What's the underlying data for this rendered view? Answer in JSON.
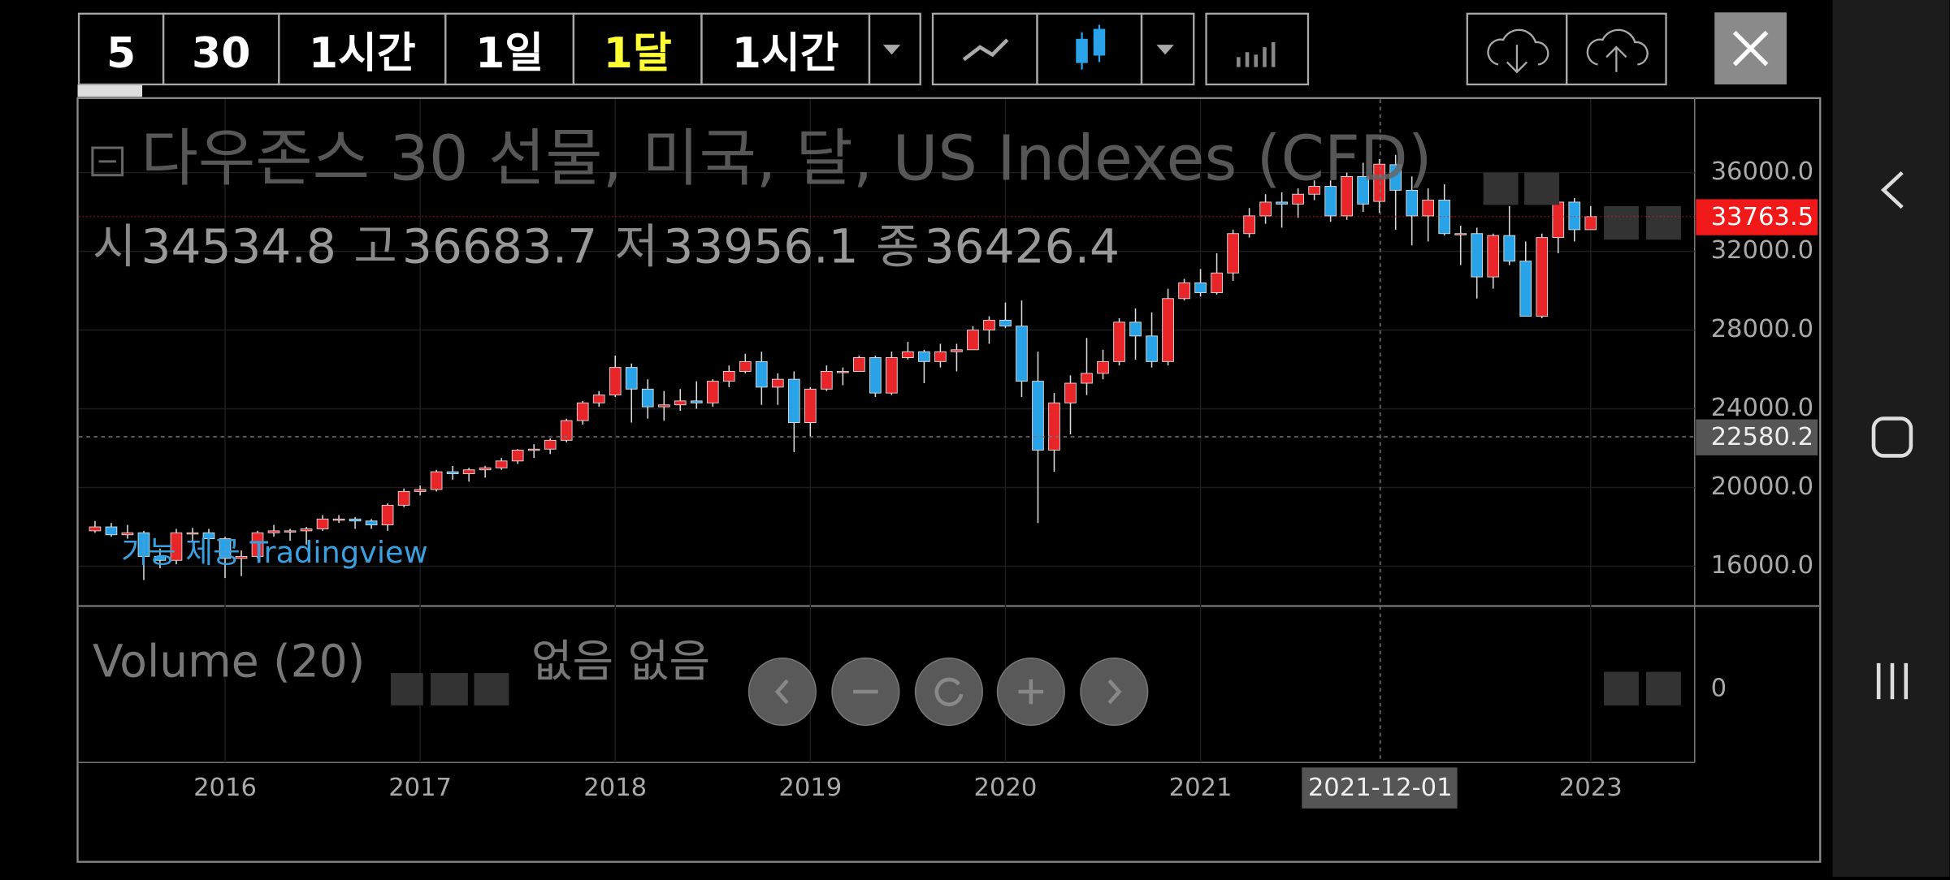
{
  "toolbar": {
    "intervals": [
      "5",
      "30",
      "1시간",
      "1일",
      "1달",
      "1시간"
    ],
    "interval_colors": [
      "#ffffff",
      "#ffffff",
      "#ffffff",
      "#ffffff",
      "#ffff33",
      "#ffffff"
    ]
  },
  "chart_data": {
    "type": "candlestick",
    "title": "다우존스 30 선물, 미국, 달, US Indexes (CFD)",
    "ohlc_labels": [
      "시",
      "고",
      "저",
      "종"
    ],
    "ohlc_index": 79,
    "watermark": "기능 제공 Tradingview",
    "categories": [
      null,
      null,
      null,
      null,
      null,
      null,
      null,
      null,
      "2016",
      null,
      null,
      null,
      null,
      null,
      null,
      null,
      null,
      null,
      null,
      null,
      "2017",
      null,
      null,
      null,
      null,
      null,
      null,
      null,
      null,
      null,
      null,
      null,
      "2018",
      null,
      null,
      null,
      null,
      null,
      null,
      null,
      null,
      null,
      null,
      null,
      "2019",
      null,
      null,
      null,
      null,
      null,
      null,
      null,
      null,
      null,
      null,
      null,
      "2020",
      null,
      null,
      null,
      null,
      null,
      null,
      null,
      null,
      null,
      null,
      null,
      "2021",
      null,
      null,
      null,
      null,
      null,
      null,
      null,
      null,
      null,
      null,
      null,
      null,
      null,
      null,
      null,
      null,
      null,
      null,
      null,
      null,
      null,
      null,
      null,
      "2023"
    ],
    "open": [
      17800,
      18000,
      17600,
      17700,
      16500,
      16300,
      17700,
      17700,
      17400,
      16400,
      16500,
      17700,
      17800,
      17800,
      17900,
      18400,
      18400,
      18300,
      18100,
      19100,
      19800,
      19900,
      20800,
      20700,
      20900,
      21000,
      21350,
      21900,
      21950,
      22400,
      23400,
      24300,
      24700,
      26100,
      25000,
      24100,
      24200,
      24400,
      24300,
      25400,
      25900,
      26400,
      25100,
      25500,
      23300,
      25000,
      25900,
      25900,
      26600,
      24800,
      26600,
      26900,
      26400,
      26900,
      27000,
      28000,
      28500,
      28200,
      25400,
      21900,
      24300,
      25300,
      25800,
      26400,
      28400,
      27700,
      26400,
      29600,
      30400,
      29900,
      30900,
      32900,
      33800,
      34500,
      34400,
      34900,
      35300,
      33800,
      35800,
      34534.8,
      36400,
      35100,
      33800,
      34600,
      32900,
      32900,
      30700,
      32800,
      31500,
      28700,
      32700,
      34500,
      33100
    ],
    "high": [
      18300,
      18200,
      18100,
      17800,
      16900,
      17900,
      17950,
      17900,
      17500,
      16800,
      17800,
      18100,
      17900,
      18000,
      18600,
      18600,
      18500,
      18400,
      19200,
      19950,
      20100,
      20900,
      21100,
      21000,
      21100,
      21500,
      21950,
      22200,
      22500,
      23500,
      24400,
      24900,
      26700,
      26300,
      25500,
      24900,
      25000,
      25400,
      25500,
      26200,
      26800,
      26900,
      25800,
      25900,
      25100,
      26200,
      26100,
      26700,
      26700,
      26900,
      27400,
      27000,
      27300,
      27300,
      28200,
      28700,
      29400,
      29500,
      26900,
      24800,
      25700,
      27600,
      27000,
      28600,
      29100,
      28900,
      30100,
      30600,
      31100,
      31900,
      33100,
      34200,
      34900,
      35000,
      35200,
      35600,
      35600,
      36000,
      36500,
      36683.7,
      36900,
      35800,
      35200,
      35400,
      33300,
      33200,
      32900,
      34300,
      32500,
      32900,
      34700,
      34700,
      34300
    ],
    "low": [
      17700,
      17500,
      17400,
      15300,
      15900,
      16100,
      17300,
      17100,
      15400,
      15500,
      16400,
      17500,
      17300,
      17100,
      17800,
      18200,
      17900,
      17900,
      17800,
      19000,
      19600,
      19800,
      20400,
      20300,
      20500,
      20900,
      21200,
      21500,
      21700,
      22300,
      23200,
      24100,
      24600,
      23300,
      23500,
      23400,
      23900,
      24000,
      24100,
      25100,
      25800,
      24200,
      24200,
      21800,
      22600,
      24900,
      25200,
      25900,
      24600,
      24700,
      26500,
      25300,
      26100,
      25900,
      27000,
      27300,
      28100,
      24600,
      18200,
      20800,
      22700,
      24700,
      25500,
      26200,
      26500,
      26100,
      26200,
      29500,
      29700,
      29800,
      30500,
      32700,
      33400,
      33200,
      33700,
      34600,
      33500,
      33600,
      34000,
      33956.1,
      33100,
      32300,
      32500,
      32800,
      31300,
      29600,
      30100,
      31300,
      28700,
      28600,
      31900,
      32500,
      33100
    ],
    "close": [
      18000,
      17600,
      17700,
      16500,
      16300,
      17700,
      17700,
      17400,
      16400,
      16500,
      17700,
      17800,
      17800,
      17900,
      18400,
      18400,
      18300,
      18100,
      19100,
      19800,
      19900,
      20800,
      20700,
      20900,
      21000,
      21350,
      21900,
      21950,
      22400,
      23400,
      24300,
      24700,
      26100,
      25000,
      24100,
      24200,
      24400,
      24300,
      25400,
      25900,
      26400,
      25100,
      25500,
      23300,
      25000,
      25900,
      25900,
      26600,
      24800,
      26600,
      26900,
      26400,
      26900,
      27000,
      28000,
      28500,
      28200,
      25400,
      21900,
      24300,
      25300,
      25800,
      26400,
      28400,
      27700,
      26400,
      29600,
      30400,
      29900,
      30900,
      32900,
      33800,
      34500,
      34400,
      34900,
      35300,
      33800,
      35800,
      34400,
      36426.4,
      35100,
      33800,
      34600,
      32900,
      32900,
      30700,
      32800,
      31500,
      28700,
      32700,
      34500,
      33100,
      33763.5
    ],
    "up_color": "#e8262a",
    "down_color": "#29a3e8",
    "last_price_color": "#f01818",
    "ylim": [
      13980,
      39720
    ],
    "yticks": [
      {
        "value": 16000,
        "label": "16000.0"
      },
      {
        "value": 20000,
        "label": "20000.0"
      },
      {
        "value": 24000,
        "label": "24000.0"
      },
      {
        "value": 28000,
        "label": "28000.0"
      },
      {
        "value": 32000,
        "label": "32000.0"
      },
      {
        "value": 36000,
        "label": "36000.0"
      }
    ],
    "grid": true,
    "crosshair": {
      "price": 22580.2,
      "date_label": "2021-12-01"
    },
    "volume": {
      "title": "Volume (20)",
      "status": "없음 없음",
      "yticks": [
        0
      ]
    }
  }
}
